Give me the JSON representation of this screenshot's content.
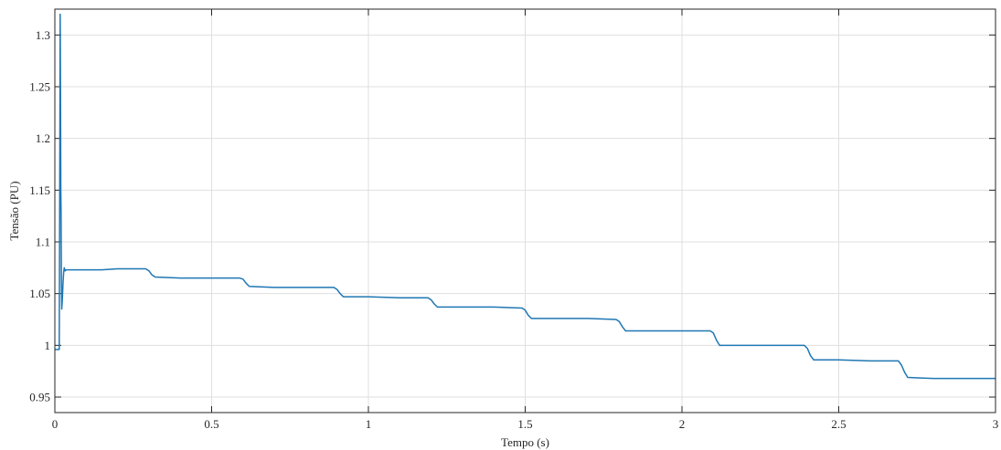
{
  "chart_data": {
    "type": "line",
    "title": "",
    "xlabel": "Tempo (s)",
    "ylabel": "Tensão (PU)",
    "xlim": [
      0,
      3
    ],
    "ylim": [
      0.935,
      1.325
    ],
    "x_ticks": [
      0,
      0.5,
      1,
      1.5,
      2,
      2.5,
      3
    ],
    "x_tick_labels": [
      "0",
      "0.5",
      "1",
      "1.5",
      "2",
      "2.5",
      "3"
    ],
    "y_ticks": [
      0.95,
      1,
      1.05,
      1.1,
      1.15,
      1.2,
      1.25,
      1.3
    ],
    "y_tick_labels": [
      "0.95",
      "1",
      "1.05",
      "1.1",
      "1.15",
      "1.2",
      "1.25",
      "1.3"
    ],
    "grid": true,
    "legend": "none",
    "line_color": "#1f77b4",
    "series": [
      {
        "x": [
          0,
          0.01,
          0.014,
          0.015,
          0.016,
          0.017,
          0.018,
          0.019,
          0.02,
          0.021,
          0.022,
          0.024,
          0.026,
          0.028,
          0.03,
          0.033,
          0.036,
          0.04,
          0.05,
          0.1,
          0.15,
          0.2,
          0.25,
          0.29,
          0.3,
          0.31,
          0.32,
          0.4,
          0.5,
          0.59,
          0.6,
          0.61,
          0.62,
          0.7,
          0.8,
          0.89,
          0.9,
          0.91,
          0.92,
          1.0,
          1.1,
          1.19,
          1.2,
          1.21,
          1.22,
          1.3,
          1.4,
          1.49,
          1.5,
          1.51,
          1.52,
          1.6,
          1.7,
          1.79,
          1.8,
          1.81,
          1.82,
          1.9,
          2.0,
          2.09,
          2.1,
          2.11,
          2.12,
          2.2,
          2.3,
          2.39,
          2.4,
          2.41,
          2.42,
          2.5,
          2.6,
          2.69,
          2.7,
          2.71,
          2.72,
          2.8,
          2.9,
          3.0
        ],
        "y": [
          0.996,
          0.996,
          0.996,
          1.09,
          1.2,
          1.32,
          1.25,
          1.15,
          1.125,
          1.06,
          1.035,
          1.045,
          1.06,
          1.07,
          1.075,
          1.072,
          1.073,
          1.073,
          1.073,
          1.073,
          1.073,
          1.074,
          1.074,
          1.074,
          1.072,
          1.068,
          1.066,
          1.065,
          1.065,
          1.065,
          1.064,
          1.06,
          1.057,
          1.056,
          1.056,
          1.056,
          1.054,
          1.05,
          1.047,
          1.047,
          1.046,
          1.046,
          1.044,
          1.04,
          1.037,
          1.037,
          1.037,
          1.036,
          1.034,
          1.029,
          1.026,
          1.026,
          1.026,
          1.025,
          1.023,
          1.018,
          1.014,
          1.014,
          1.014,
          1.014,
          1.012,
          1.005,
          1.0,
          1.0,
          1.0,
          1.0,
          0.997,
          0.99,
          0.986,
          0.986,
          0.985,
          0.985,
          0.981,
          0.974,
          0.969,
          0.968,
          0.968,
          0.968
        ]
      }
    ]
  }
}
